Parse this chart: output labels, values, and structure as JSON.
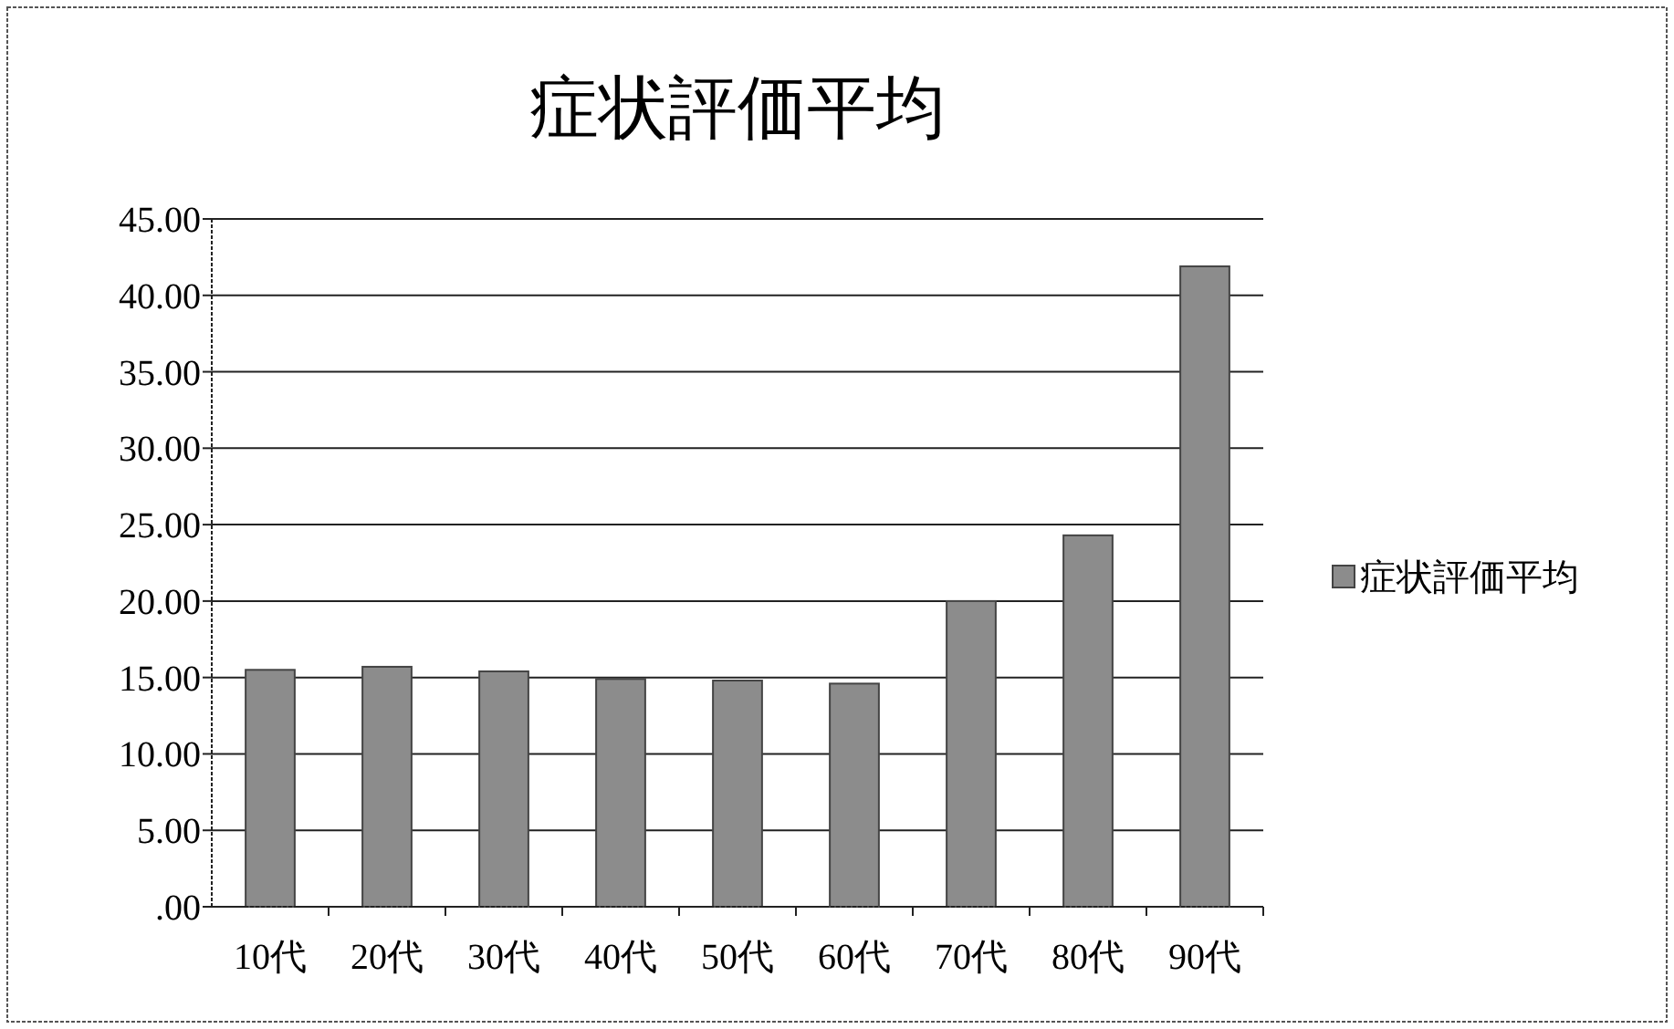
{
  "chart_data": {
    "type": "bar",
    "title": "症状評価平均",
    "categories": [
      "10代",
      "20代",
      "30代",
      "40代",
      "50代",
      "60代",
      "70代",
      "80代",
      "90代"
    ],
    "series": [
      {
        "name": "症状評価平均",
        "color": "#8c8c8c",
        "values": [
          15.5,
          15.7,
          15.4,
          14.9,
          14.8,
          14.6,
          20.0,
          24.3,
          41.9
        ]
      }
    ],
    "ylim": [
      0,
      45
    ],
    "yticks": [
      {
        "value": 0,
        "label": ".00"
      },
      {
        "value": 5,
        "label": "5.00"
      },
      {
        "value": 10,
        "label": "10.00"
      },
      {
        "value": 15,
        "label": "15.00"
      },
      {
        "value": 20,
        "label": "20.00"
      },
      {
        "value": 25,
        "label": "25.00"
      },
      {
        "value": 30,
        "label": "30.00"
      },
      {
        "value": 35,
        "label": "35.00"
      },
      {
        "value": 40,
        "label": "40.00"
      },
      {
        "value": 45,
        "label": "45.00"
      }
    ],
    "grid": "y",
    "legend": "right"
  }
}
